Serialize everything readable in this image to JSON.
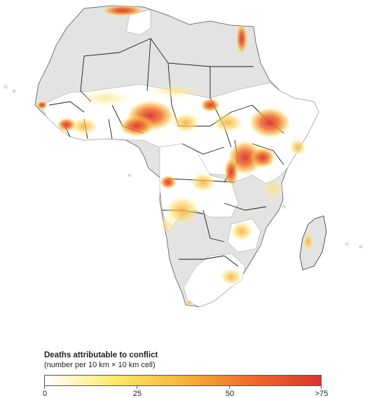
{
  "legend": {
    "title": "Deaths attributable to conflict",
    "subtitle": "(number per 10 km × 10 km cell)",
    "ticks": [
      "0",
      "25",
      "50",
      ">75"
    ],
    "tick_values": [
      0,
      25,
      50,
      75
    ],
    "scale_min": 0,
    "scale_max": 75,
    "color_stops": [
      "#ffffff",
      "#fbea6a",
      "#f7b43a",
      "#ef6b2a",
      "#d9342b"
    ]
  },
  "colors": {
    "land_no_data": "#e3e3e3",
    "land_data": "#ffffff",
    "border": "#1a1a1a",
    "low": "#fdf0a0",
    "mid": "#f6b84a",
    "high": "#e2412a"
  }
}
